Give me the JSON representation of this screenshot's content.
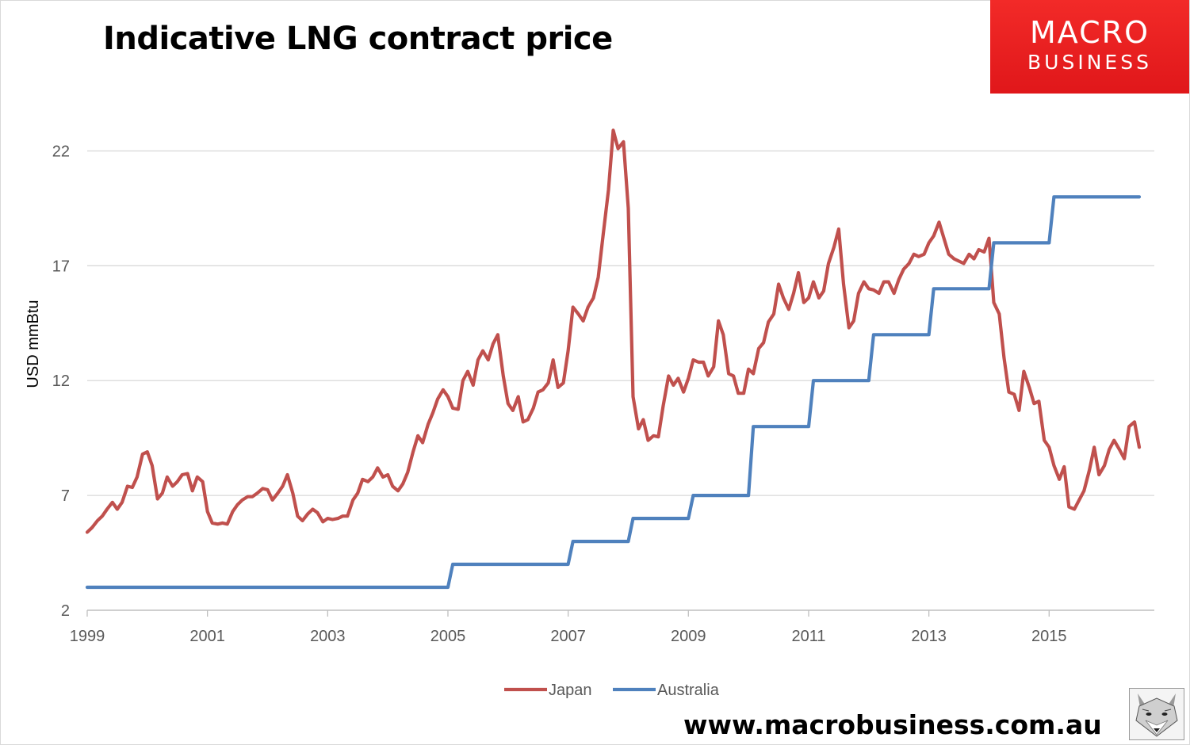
{
  "header": {
    "title": "Indicative LNG contract price"
  },
  "logo": {
    "line1": "MACRO",
    "line2": "BUSINESS",
    "color": "#e8201f"
  },
  "footer": {
    "website": "www.macrobusiness.com.au"
  },
  "chart_data": {
    "type": "line",
    "title": "Indicative LNG contract price",
    "ylabel": "USD mmBtu",
    "xlabel": "",
    "xlim": [
      1999,
      2016.75
    ],
    "ylim": [
      2,
      24.5
    ],
    "yticks": [
      2,
      7,
      12,
      17,
      22
    ],
    "xticks": [
      1999,
      2001,
      2003,
      2005,
      2007,
      2009,
      2011,
      2013,
      2015
    ],
    "grid": "horizontal",
    "legend": "bottom-center",
    "series": [
      {
        "name": "Japan",
        "color": "#c0504d",
        "x": [
          1999.0,
          1999.08,
          1999.17,
          1999.25,
          1999.33,
          1999.42,
          1999.5,
          1999.58,
          1999.67,
          1999.75,
          1999.83,
          1999.92,
          2000.0,
          2000.08,
          2000.17,
          2000.25,
          2000.33,
          2000.42,
          2000.5,
          2000.58,
          2000.67,
          2000.75,
          2000.83,
          2000.92,
          2001.0,
          2001.08,
          2001.17,
          2001.25,
          2001.33,
          2001.42,
          2001.5,
          2001.58,
          2001.67,
          2001.75,
          2001.83,
          2001.92,
          2002.0,
          2002.08,
          2002.17,
          2002.25,
          2002.33,
          2002.42,
          2002.5,
          2002.58,
          2002.67,
          2002.75,
          2002.83,
          2002.92,
          2003.0,
          2003.08,
          2003.17,
          2003.25,
          2003.33,
          2003.42,
          2003.5,
          2003.58,
          2003.67,
          2003.75,
          2003.83,
          2003.92,
          2004.0,
          2004.08,
          2004.17,
          2004.25,
          2004.33,
          2004.42,
          2004.5,
          2004.58,
          2004.67,
          2004.75,
          2004.83,
          2004.92,
          2005.0,
          2005.08,
          2005.17,
          2005.25,
          2005.33,
          2005.42,
          2005.5,
          2005.58,
          2005.67,
          2005.75,
          2005.83,
          2005.92,
          2006.0,
          2006.08,
          2006.17,
          2006.25,
          2006.33,
          2006.42,
          2006.5,
          2006.58,
          2006.67,
          2006.75,
          2006.83,
          2006.92,
          2007.0,
          2007.08,
          2007.17,
          2007.25,
          2007.33,
          2007.42,
          2007.5,
          2007.58,
          2007.67,
          2007.75,
          2007.83,
          2007.92,
          2008.0,
          2008.08,
          2008.17,
          2008.25,
          2008.33,
          2008.42,
          2008.5,
          2008.58,
          2008.67,
          2008.75,
          2008.83,
          2008.92,
          2009.0,
          2009.08,
          2009.17,
          2009.25,
          2009.33,
          2009.42,
          2009.5,
          2009.58,
          2009.67,
          2009.75,
          2009.83,
          2009.92,
          2010.0,
          2010.08,
          2010.17,
          2010.25,
          2010.33,
          2010.42,
          2010.5,
          2010.58,
          2010.67,
          2010.75,
          2010.83,
          2010.92,
          2011.0,
          2011.08,
          2011.17,
          2011.25,
          2011.33,
          2011.42,
          2011.5,
          2011.58,
          2011.67,
          2011.75,
          2011.83,
          2011.92,
          2012.0,
          2012.08,
          2012.17,
          2012.25,
          2012.33,
          2012.42,
          2012.5,
          2012.58,
          2012.67,
          2012.75,
          2012.83,
          2012.92,
          2013.0,
          2013.08,
          2013.17,
          2013.25,
          2013.33,
          2013.42,
          2013.5,
          2013.58,
          2013.67,
          2013.75,
          2013.83,
          2013.92,
          2014.0,
          2014.08,
          2014.17,
          2014.25,
          2014.33,
          2014.42,
          2014.5,
          2014.58,
          2014.67,
          2014.75,
          2014.83,
          2014.92,
          2015.0,
          2015.08,
          2015.17,
          2015.25,
          2015.33,
          2015.42,
          2015.5,
          2015.58,
          2015.67,
          2015.75,
          2015.83,
          2015.92,
          2016.0,
          2016.08,
          2016.17,
          2016.25,
          2016.33,
          2016.42,
          2016.5
        ],
        "values": [
          5.4,
          5.6,
          5.9,
          6.1,
          6.4,
          6.7,
          6.4,
          6.7,
          7.4,
          7.35,
          7.8,
          8.8,
          8.9,
          8.3,
          6.85,
          7.1,
          7.8,
          7.4,
          7.6,
          7.9,
          7.95,
          7.2,
          7.8,
          7.6,
          6.3,
          5.8,
          5.75,
          5.8,
          5.75,
          6.3,
          6.6,
          6.8,
          6.95,
          6.95,
          7.1,
          7.3,
          7.25,
          6.8,
          7.1,
          7.4,
          7.9,
          7.1,
          6.1,
          5.9,
          6.2,
          6.4,
          6.25,
          5.85,
          6.0,
          5.95,
          6.0,
          6.1,
          6.1,
          6.8,
          7.1,
          7.7,
          7.6,
          7.8,
          8.2,
          7.8,
          7.9,
          7.4,
          7.2,
          7.5,
          8.0,
          8.9,
          9.6,
          9.3,
          10.1,
          10.6,
          11.2,
          11.6,
          11.3,
          10.8,
          10.75,
          12.0,
          12.4,
          11.8,
          12.9,
          13.3,
          12.9,
          13.6,
          14.0,
          12.2,
          11.0,
          10.7,
          11.3,
          10.2,
          10.3,
          10.8,
          11.5,
          11.6,
          11.9,
          12.9,
          11.7,
          11.9,
          13.3,
          15.2,
          14.9,
          14.6,
          15.2,
          15.6,
          16.5,
          18.3,
          20.3,
          22.9,
          22.1,
          22.4,
          19.5,
          11.3,
          9.9,
          10.3,
          9.4,
          9.6,
          9.55,
          10.9,
          12.2,
          11.8,
          12.1,
          11.5,
          12.1,
          12.9,
          12.8,
          12.8,
          12.2,
          12.6,
          14.6,
          14.0,
          12.3,
          12.2,
          11.45,
          11.45,
          12.5,
          12.3,
          13.4,
          13.65,
          14.55,
          14.9,
          16.2,
          15.6,
          15.1,
          15.8,
          16.7,
          15.4,
          15.6,
          16.3,
          15.6,
          15.9,
          17.1,
          17.8,
          18.6,
          16.2,
          14.3,
          14.6,
          15.8,
          16.3,
          16.0,
          15.95,
          15.8,
          16.3,
          16.3,
          15.8,
          16.4,
          16.85,
          17.1,
          17.5,
          17.4,
          17.5,
          18.0,
          18.3,
          18.9,
          18.2,
          17.5,
          17.3,
          17.2,
          17.1,
          17.5,
          17.3,
          17.7,
          17.6,
          18.2,
          15.4,
          14.9,
          13.0,
          11.5,
          11.4,
          10.7,
          12.4,
          11.7,
          11.0,
          11.1,
          9.4,
          9.1,
          8.3,
          7.7,
          8.25,
          6.5,
          6.4,
          6.8,
          7.2,
          8.1,
          9.1,
          7.9,
          8.3,
          9.0,
          9.4,
          9.0,
          8.6,
          10.0,
          10.2,
          9.1
        ]
      },
      {
        "name": "Australia",
        "color": "#4f81bd",
        "x": [
          1999.0,
          2005.0,
          2005.08,
          2007.0,
          2007.08,
          2008.0,
          2008.08,
          2009.0,
          2009.08,
          2010.0,
          2010.08,
          2011.0,
          2011.08,
          2012.0,
          2012.08,
          2013.0,
          2013.08,
          2014.0,
          2014.08,
          2015.0,
          2015.08,
          2016.5
        ],
        "values": [
          3.0,
          3.0,
          4.0,
          4.0,
          5.0,
          5.0,
          6.0,
          6.0,
          7.0,
          7.0,
          10.0,
          10.0,
          12.0,
          12.0,
          14.0,
          14.0,
          16.0,
          16.0,
          18.0,
          18.0,
          20.0,
          20.0
        ]
      }
    ]
  }
}
